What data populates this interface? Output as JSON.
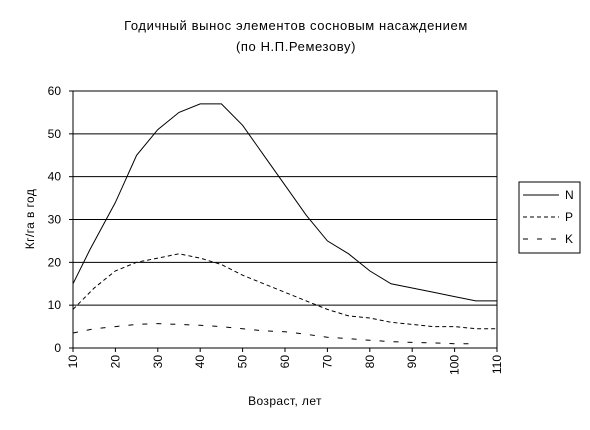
{
  "chart_data": {
    "type": "line",
    "title": "Годичный вынос элементов сосновым насаждением",
    "subtitle": "(по Н.П.Ремезову)",
    "xlabel": "Возраст, лет",
    "ylabel": "Кг/га в год",
    "xlim": [
      10,
      110
    ],
    "ylim": [
      0,
      60
    ],
    "x_ticks": [
      10,
      20,
      30,
      40,
      50,
      60,
      70,
      80,
      90,
      100,
      110
    ],
    "y_ticks": [
      0,
      10,
      20,
      30,
      40,
      50,
      60
    ],
    "grid": "horizontal",
    "legend_position": "right",
    "series": [
      {
        "name": "N",
        "style": "solid",
        "points": [
          [
            10,
            15
          ],
          [
            14,
            23
          ],
          [
            20,
            34
          ],
          [
            25,
            45
          ],
          [
            30,
            51
          ],
          [
            35,
            55
          ],
          [
            40,
            57
          ],
          [
            45,
            57
          ],
          [
            50,
            52
          ],
          [
            55,
            45
          ],
          [
            60,
            38
          ],
          [
            65,
            31
          ],
          [
            70,
            25
          ],
          [
            75,
            22
          ],
          [
            80,
            18
          ],
          [
            85,
            15
          ],
          [
            90,
            14
          ],
          [
            95,
            13
          ],
          [
            100,
            12
          ],
          [
            105,
            11
          ],
          [
            110,
            11
          ]
        ]
      },
      {
        "name": "P",
        "style": "dashed",
        "points": [
          [
            10,
            9
          ],
          [
            15,
            14
          ],
          [
            20,
            18
          ],
          [
            25,
            20
          ],
          [
            30,
            21
          ],
          [
            35,
            22
          ],
          [
            40,
            21
          ],
          [
            45,
            19.5
          ],
          [
            50,
            17
          ],
          [
            55,
            15
          ],
          [
            60,
            13
          ],
          [
            65,
            11
          ],
          [
            70,
            9
          ],
          [
            75,
            7.5
          ],
          [
            80,
            7
          ],
          [
            85,
            6
          ],
          [
            90,
            5.5
          ],
          [
            95,
            5
          ],
          [
            100,
            5
          ],
          [
            105,
            4.5
          ],
          [
            110,
            4.5
          ]
        ]
      },
      {
        "name": "K",
        "style": "dashed-sparse",
        "points": [
          [
            10,
            3.5
          ],
          [
            15,
            4.5
          ],
          [
            20,
            5
          ],
          [
            25,
            5.5
          ],
          [
            30,
            5.7
          ],
          [
            35,
            5.5
          ],
          [
            40,
            5.3
          ],
          [
            45,
            5
          ],
          [
            50,
            4.5
          ],
          [
            55,
            4
          ],
          [
            60,
            3.8
          ],
          [
            65,
            3.2
          ],
          [
            70,
            2.5
          ],
          [
            75,
            2.2
          ],
          [
            80,
            1.8
          ],
          [
            85,
            1.5
          ],
          [
            90,
            1.3
          ],
          [
            95,
            1.2
          ],
          [
            100,
            1
          ],
          [
            105,
            1
          ]
        ]
      }
    ]
  }
}
